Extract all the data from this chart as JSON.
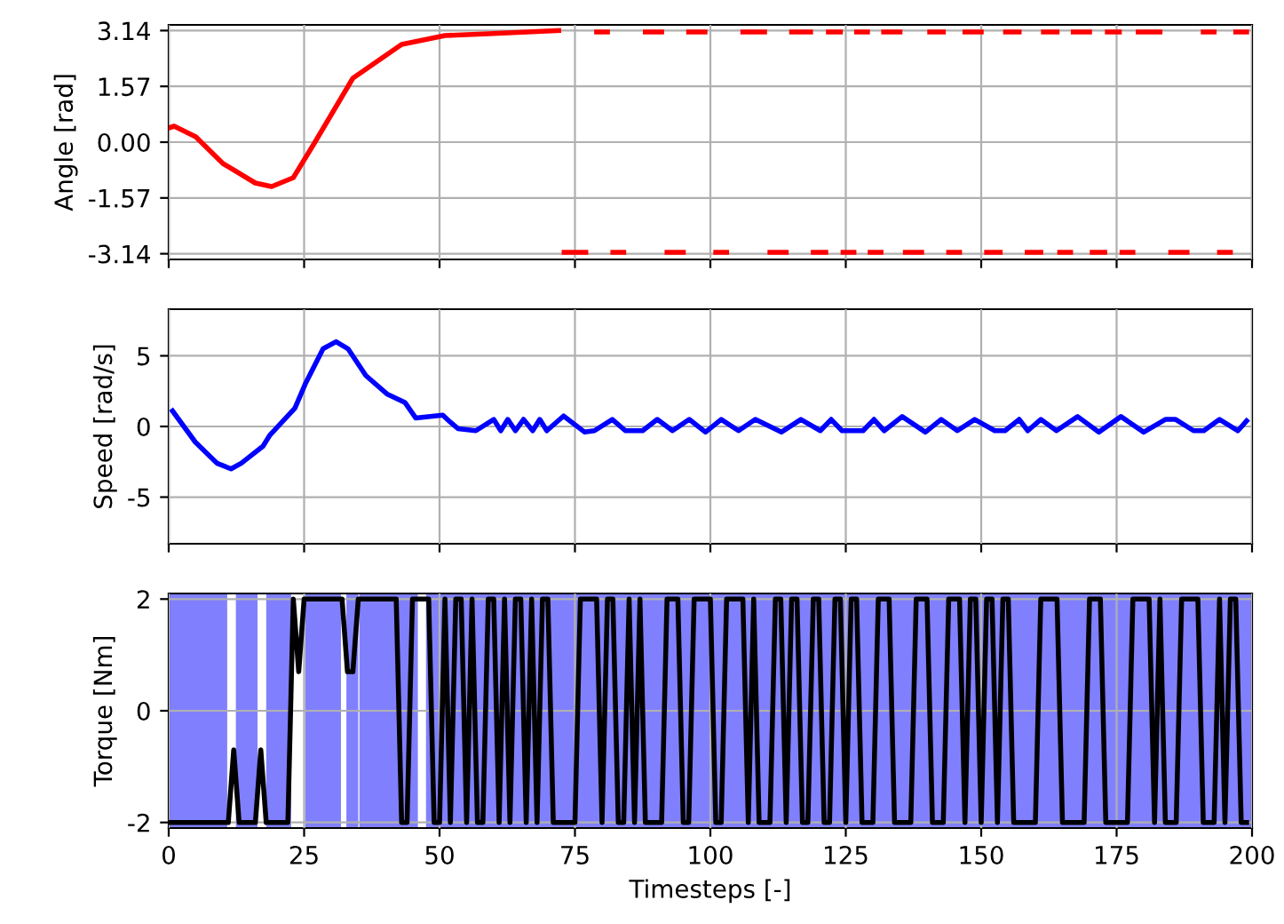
{
  "chart_data": [
    {
      "type": "line",
      "ylabel": "Angle [rad]",
      "xlim": [
        0,
        200
      ],
      "xticks": [
        0,
        25,
        50,
        75,
        100,
        125,
        150,
        175,
        200
      ],
      "ylim": [
        -3.3,
        3.3
      ],
      "yticks": [
        {
          "value": 3.14,
          "label": "3.14"
        },
        {
          "value": 1.57,
          "label": "1.57"
        },
        {
          "value": 0,
          "label": "0.00"
        },
        {
          "value": -1.57,
          "label": "-1.57"
        },
        {
          "value": -3.14,
          "label": "-3.14"
        }
      ],
      "grid": true,
      "tick_labels": "y",
      "line_style": "solid",
      "series": [
        {
          "color": "#ff0000",
          "x": [
            0,
            1,
            5,
            10,
            16,
            19,
            23,
            27,
            34,
            43,
            51,
            59,
            72
          ],
          "values": [
            0.4,
            0.45,
            0.15,
            -0.6,
            -1.15,
            -1.25,
            -1.0,
            0.0,
            1.8,
            2.75,
            3.0,
            3.05,
            3.14
          ]
        },
        {
          "color": "#ff0000",
          "x": [
            79,
            81,
            82,
            88,
            91,
            92,
            96,
            99,
            100,
            106,
            110,
            111,
            115,
            118.5,
            119,
            121.8,
            124,
            125,
            127,
            129,
            130,
            132,
            135,
            136,
            140.5,
            143,
            144,
            147,
            150,
            151,
            154.5,
            157,
            158,
            161.5,
            164,
            165,
            167,
            170,
            171,
            173.3,
            175.5,
            176,
            179,
            183,
            184,
            191,
            193,
            194,
            197,
            199
          ],
          "values": [
            3.1,
            3.1,
            null,
            3.1,
            3.1,
            null,
            3.1,
            3.1,
            null,
            3.1,
            3.1,
            null,
            3.1,
            3.1,
            null,
            3.1,
            3.1,
            null,
            3.1,
            3.1,
            null,
            3.1,
            3.1,
            null,
            3.1,
            3.1,
            null,
            3.1,
            3.1,
            null,
            3.1,
            3.1,
            null,
            3.1,
            3.1,
            null,
            3.1,
            3.1,
            null,
            3.1,
            3.1,
            null,
            3.1,
            3.1,
            null,
            3.1,
            3.1,
            null,
            3.1,
            3.1
          ]
        },
        {
          "color": "#ff0000",
          "x": [
            73,
            77,
            78,
            82,
            84,
            85,
            92,
            95,
            96,
            101,
            103,
            104,
            111,
            114,
            115,
            119,
            121.3,
            122,
            124.5,
            126.5,
            127,
            129.5,
            131.5,
            132,
            136,
            139,
            140,
            144,
            146,
            147,
            151,
            153.5,
            154,
            158.5,
            161,
            162,
            164.5,
            166.5,
            167,
            170.5,
            172.8,
            173,
            176,
            178,
            179,
            185,
            188,
            189,
            194,
            196
          ],
          "values": [
            -3.1,
            -3.1,
            null,
            -3.1,
            -3.1,
            null,
            -3.1,
            -3.1,
            null,
            -3.1,
            -3.1,
            null,
            -3.1,
            -3.1,
            null,
            -3.1,
            -3.1,
            null,
            -3.1,
            -3.1,
            null,
            -3.1,
            -3.1,
            null,
            -3.1,
            -3.1,
            null,
            -3.1,
            -3.1,
            null,
            -3.1,
            -3.1,
            null,
            -3.1,
            -3.1,
            null,
            -3.1,
            -3.1,
            null,
            -3.1,
            -3.1,
            null,
            -3.1,
            -3.1,
            null,
            -3.1,
            -3.1,
            null,
            -3.1,
            -3.1
          ]
        }
      ]
    },
    {
      "type": "line",
      "ylabel": "Speed [rad/s]",
      "xlim": [
        0,
        200
      ],
      "xticks": [
        0,
        25,
        50,
        75,
        100,
        125,
        150,
        175,
        200
      ],
      "ylim": [
        -8.3,
        8.3
      ],
      "yticks": [
        -5,
        0,
        5
      ],
      "grid": true,
      "tick_labels": "y",
      "line_style": "solid",
      "series": [
        {
          "color": "#0000ff",
          "x": [
            0.7,
            4.9,
            8.9,
            11.5,
            13.4,
            17.4,
            18.7,
            23.3,
            25.2,
            28.5,
            30.9,
            33.1,
            36.4,
            40.3,
            43.6,
            45.6,
            50.6,
            52,
            53.4,
            56.7,
            60,
            61.3,
            62.6,
            64,
            65.5,
            67.2,
            68.5,
            69.8,
            72.9,
            76.8,
            78.6,
            81.9,
            84.3,
            87.5,
            90.2,
            93,
            96.1,
            99.1,
            102,
            105.2,
            108.3,
            113.1,
            116.7,
            120.3,
            122.3,
            124.3,
            128.2,
            130.2,
            132.1,
            135.4,
            139.7,
            142.6,
            145.6,
            148.8,
            152.5,
            154.4,
            157,
            158.6,
            161,
            163.9,
            167.8,
            171.7,
            175.8,
            180,
            184,
            185.9,
            189.2,
            191.1,
            194,
            197.4,
            199
          ],
          "values": [
            1.1,
            -1.1,
            -2.6,
            -3.0,
            -2.6,
            -1.4,
            -0.6,
            1.3,
            3.0,
            5.5,
            6.0,
            5.5,
            3.6,
            2.3,
            1.7,
            0.6,
            0.8,
            0.3,
            -0.15,
            -0.3,
            0.5,
            -0.3,
            0.5,
            -0.3,
            0.5,
            -0.3,
            0.5,
            -0.3,
            0.74,
            -0.4,
            -0.3,
            0.5,
            -0.3,
            -0.3,
            0.5,
            -0.3,
            0.5,
            -0.4,
            0.5,
            -0.3,
            0.5,
            -0.4,
            0.5,
            -0.3,
            0.5,
            -0.3,
            -0.3,
            0.5,
            -0.3,
            0.7,
            -0.4,
            0.5,
            -0.3,
            0.5,
            -0.3,
            -0.3,
            0.5,
            -0.3,
            0.5,
            -0.3,
            0.7,
            -0.4,
            0.7,
            -0.4,
            0.5,
            0.5,
            -0.3,
            -0.3,
            0.5,
            -0.3,
            0.4
          ]
        }
      ]
    },
    {
      "type": "line",
      "ylabel": "Torque [Nm]",
      "xlabel": "Timesteps [-]",
      "xlim": [
        0,
        200
      ],
      "xticks": [
        0,
        25,
        50,
        75,
        100,
        125,
        150,
        175,
        200
      ],
      "ylim": [
        -2.1,
        2.1
      ],
      "yticks": [
        -2,
        0,
        2
      ],
      "grid": true,
      "line_style": "solid",
      "bands": [
        {
          "axis": "x",
          "from": 0,
          "to": 10.8,
          "color": "#8080ff"
        },
        {
          "axis": "x",
          "from": 12.4,
          "to": 16.4,
          "color": "#8080ff"
        },
        {
          "axis": "x",
          "from": 18,
          "to": 22.6,
          "color": "#8080ff"
        },
        {
          "axis": "x",
          "from": 25.2,
          "to": 31.8,
          "color": "#8080ff"
        },
        {
          "axis": "x",
          "from": 32.8,
          "to": 35,
          "color": "#8080ff"
        },
        {
          "axis": "x",
          "from": 35.2,
          "to": 46,
          "color": "#8080ff"
        },
        {
          "axis": "x",
          "from": 47.5,
          "to": 200,
          "color": "#8080ff"
        }
      ],
      "series": [
        {
          "color": "#000000",
          "x": [
            0,
            11,
            12,
            13,
            16,
            17,
            18,
            22,
            23,
            24,
            25,
            32,
            33,
            34,
            35,
            42,
            43,
            44,
            45,
            48,
            49,
            50,
            51,
            52,
            53,
            54,
            55,
            56,
            57,
            58,
            59,
            60,
            61,
            62,
            63,
            64,
            65,
            66,
            67,
            68,
            69,
            70,
            71,
            75,
            76,
            79,
            80,
            81,
            82,
            83,
            84,
            85,
            86,
            87,
            88,
            91,
            92,
            94,
            95,
            96,
            97,
            100,
            101,
            102,
            103,
            106,
            107,
            108,
            109,
            111,
            112,
            113,
            114,
            115,
            116,
            117,
            118,
            119,
            120,
            121,
            122,
            123,
            124,
            125,
            126,
            127,
            128,
            130,
            131,
            133,
            134,
            137,
            138,
            140,
            141,
            143,
            144,
            146,
            147,
            148,
            149,
            150,
            151,
            152,
            153,
            154,
            155,
            156,
            160,
            161,
            164,
            165,
            169,
            170,
            172,
            173,
            177,
            178,
            181,
            182,
            183,
            184,
            186,
            187,
            190,
            191,
            193,
            194,
            195,
            196,
            197,
            198,
            199
          ],
          "values": [
            -2,
            -2,
            -0.7,
            -2,
            -2,
            -0.7,
            -2,
            -2,
            2,
            0.7,
            2,
            2,
            0.7,
            0.7,
            2,
            2,
            -2,
            -2,
            2,
            2,
            -2,
            -2,
            2,
            -2,
            2,
            2,
            -2,
            2,
            -2,
            -2,
            2,
            2,
            -2,
            2,
            -2,
            2,
            2,
            -2,
            2,
            -2,
            2,
            2,
            -2,
            -2,
            2,
            2,
            -2,
            2,
            2,
            -2,
            -2,
            2,
            -2,
            2,
            -2,
            -2,
            2,
            2,
            -2,
            -2,
            2,
            2,
            -2,
            -2,
            2,
            2,
            -2,
            2,
            -2,
            -2,
            2,
            2,
            -2,
            2,
            2,
            -2,
            -2,
            2,
            2,
            -2,
            -2,
            2,
            2,
            -2,
            2,
            2,
            -2,
            -2,
            2,
            2,
            -2,
            -2,
            2,
            2,
            -2,
            -2,
            2,
            2,
            -2,
            2,
            2,
            -2,
            2,
            2,
            -2,
            2,
            2,
            -2,
            -2,
            2,
            2,
            -2,
            -2,
            2,
            2,
            -2,
            -2,
            2,
            2,
            -2,
            2,
            -2,
            -2,
            2,
            2,
            -2,
            -2,
            2,
            -2,
            2,
            2,
            -2,
            -2
          ]
        }
      ]
    }
  ]
}
